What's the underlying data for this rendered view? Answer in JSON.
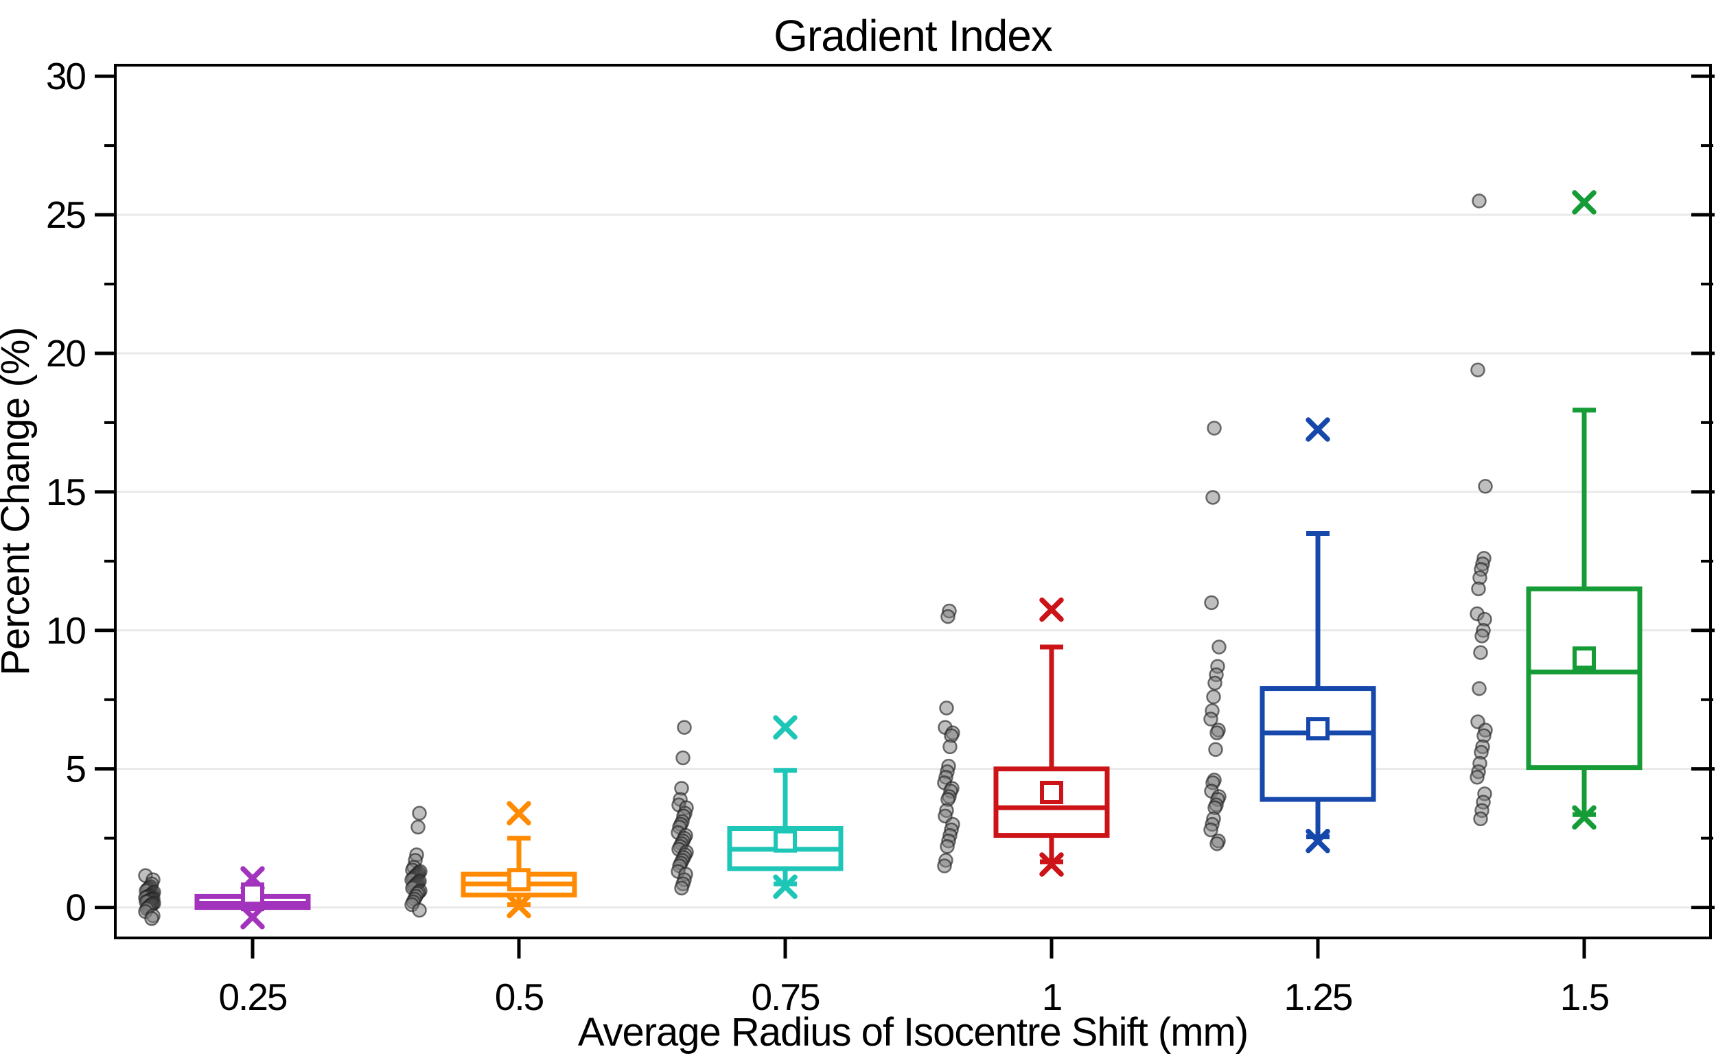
{
  "chart_data": {
    "type": "box",
    "title": "Gradient Index",
    "xlabel": "Average Radius of Isocentre Shift (mm)",
    "ylabel": "Percent Change (%)",
    "ylim": [
      -1.1,
      30.4
    ],
    "yticks": [
      0,
      5,
      10,
      15,
      20,
      25,
      30
    ],
    "ytick_labels": [
      "0",
      "5",
      "10",
      "15",
      "20",
      "25",
      "30"
    ],
    "yminor_ticks": [
      2.5,
      7.5,
      12.5,
      17.5,
      22.5,
      27.5
    ],
    "grid": "horizontal-major",
    "legend": "none",
    "categories": [
      "0.25",
      "0.5",
      "0.75",
      "1",
      "1.25",
      "1.5"
    ],
    "gridline_color": "#e9e9e9",
    "frame_color": "#000000",
    "scatter_fill": "rgba(128,128,128,0.5)",
    "scatter_stroke": "rgba(35,35,35,0.65)",
    "series": [
      {
        "category": "0.25",
        "color": "#A233BC",
        "box": {
          "q1": 0.0,
          "median": 0.15,
          "q3": 0.4,
          "mean": 0.48,
          "whisker_low": -0.05,
          "whisker_high": 0.8,
          "outlier_high": 1.05,
          "outlier_low": -0.35
        },
        "scatter": [
          1.15,
          1.0,
          0.85,
          0.75,
          0.7,
          0.65,
          0.6,
          0.55,
          0.5,
          0.45,
          0.42,
          0.4,
          0.38,
          0.35,
          0.32,
          0.3,
          0.28,
          0.25,
          0.22,
          0.2,
          0.15,
          0.12,
          0.1,
          0.05,
          0.0,
          -0.05,
          -0.15,
          -0.3,
          -0.4
        ]
      },
      {
        "category": "0.5",
        "color": "#FF8B05",
        "box": {
          "q1": 0.45,
          "median": 0.85,
          "q3": 1.2,
          "mean": 1.0,
          "whisker_low": 0.1,
          "whisker_high": 2.5,
          "outlier_high": 3.4,
          "outlier_low": 0.05
        },
        "scatter": [
          3.4,
          2.9,
          1.9,
          1.7,
          1.45,
          1.35,
          1.3,
          1.25,
          1.2,
          1.15,
          1.1,
          1.05,
          1.0,
          0.95,
          0.9,
          0.85,
          0.8,
          0.75,
          0.7,
          0.6,
          0.55,
          0.5,
          0.4,
          0.3,
          0.2,
          0.1,
          -0.1
        ]
      },
      {
        "category": "0.75",
        "color": "#1EC6B7",
        "box": {
          "q1": 1.4,
          "median": 2.1,
          "q3": 2.85,
          "mean": 2.4,
          "whisker_low": 0.85,
          "whisker_high": 4.95,
          "outlier_high": 6.5,
          "outlier_low": 0.75
        },
        "scatter": [
          6.5,
          5.4,
          4.3,
          3.9,
          3.7,
          3.6,
          3.4,
          3.3,
          3.1,
          3.0,
          2.9,
          2.7,
          2.6,
          2.5,
          2.4,
          2.3,
          2.2,
          2.1,
          2.0,
          1.9,
          1.8,
          1.7,
          1.6,
          1.5,
          1.3,
          1.2,
          1.0,
          0.85,
          0.7
        ]
      },
      {
        "category": "1",
        "color": "#CC1418",
        "box": {
          "q1": 2.6,
          "median": 3.6,
          "q3": 5.0,
          "mean": 4.15,
          "whisker_low": 1.65,
          "whisker_high": 9.4,
          "outlier_high": 10.75,
          "outlier_low": 1.55
        },
        "scatter": [
          10.7,
          10.5,
          7.2,
          6.5,
          6.3,
          6.2,
          5.8,
          5.1,
          4.9,
          4.7,
          4.5,
          4.3,
          4.2,
          4.0,
          3.9,
          3.5,
          3.3,
          3.0,
          2.8,
          2.6,
          2.4,
          2.2,
          1.7,
          1.5
        ]
      },
      {
        "category": "1.25",
        "color": "#1648AB",
        "box": {
          "q1": 3.9,
          "median": 6.3,
          "q3": 7.9,
          "mean": 6.45,
          "whisker_low": 2.55,
          "whisker_high": 13.5,
          "outlier_high": 17.25,
          "outlier_low": 2.4
        },
        "scatter": [
          17.3,
          14.8,
          11.0,
          9.4,
          8.7,
          8.4,
          8.1,
          7.6,
          7.1,
          6.8,
          6.4,
          6.3,
          5.7,
          4.6,
          4.5,
          4.2,
          4.0,
          3.9,
          3.7,
          3.6,
          3.2,
          3.0,
          2.8,
          2.4,
          2.3
        ]
      },
      {
        "category": "1.5",
        "color": "#169C36",
        "box": {
          "q1": 5.05,
          "median": 8.5,
          "q3": 11.5,
          "mean": 9.0,
          "whisker_low": 3.35,
          "whisker_high": 17.95,
          "outlier_high": 25.45,
          "outlier_low": 3.25
        },
        "scatter": [
          25.5,
          19.4,
          15.2,
          12.6,
          12.4,
          12.2,
          11.9,
          11.5,
          10.6,
          10.4,
          10.0,
          9.8,
          9.2,
          7.9,
          6.7,
          6.4,
          6.2,
          5.8,
          5.6,
          5.2,
          4.9,
          4.7,
          4.1,
          3.8,
          3.5,
          3.2
        ]
      }
    ]
  }
}
